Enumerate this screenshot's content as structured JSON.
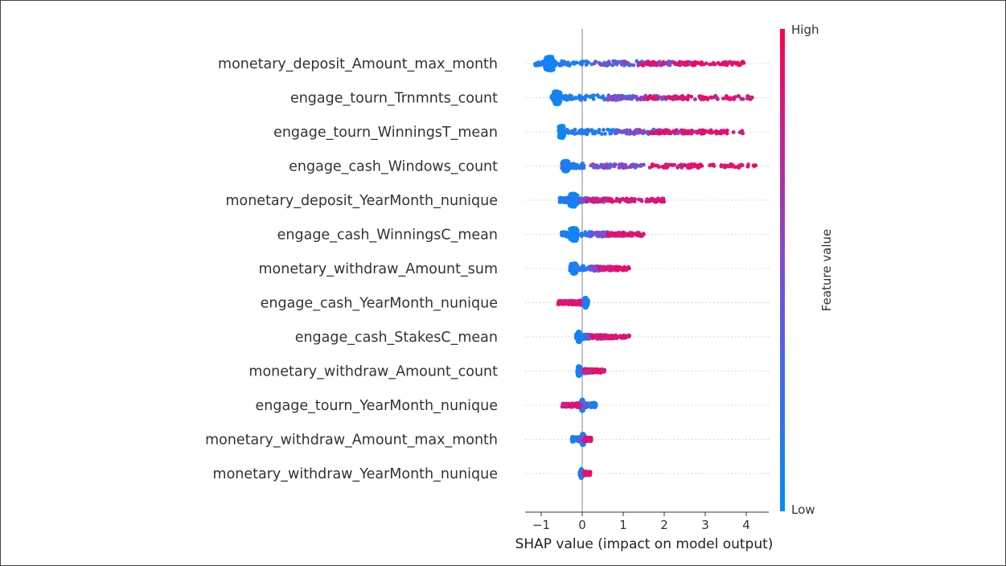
{
  "chart_data": {
    "type": "scatter",
    "subtype": "shap-beeswarm-summary",
    "title": "",
    "xlabel": "SHAP value (impact on model output)",
    "xlim": [
      -1.4,
      4.5
    ],
    "xticks": [
      -1,
      0,
      1,
      2,
      3,
      4
    ],
    "xtick_labels": [
      "−1",
      "0",
      "1",
      "2",
      "3",
      "4"
    ],
    "grid": "horizontal dotted guide line per feature",
    "colorbar": {
      "label": "Feature value",
      "high_label": "High",
      "low_label": "Low",
      "low_color": "#008bfb",
      "high_color": "#ff0052",
      "placement": "right"
    },
    "features": [
      {
        "name": "monetary_deposit_Amount_max_month",
        "mode": -0.8,
        "mode_spread": 0.22,
        "mode_height": 17,
        "low_range": [
          -1.15,
          1.5
        ],
        "mid_range": [
          0.3,
          2.6
        ],
        "high_range": [
          1.4,
          3.95
        ]
      },
      {
        "name": "engage_tourn_Trnmnts_count",
        "mode": -0.62,
        "mode_spread": 0.15,
        "mode_height": 16,
        "low_range": [
          -0.75,
          1.4
        ],
        "mid_range": [
          0.6,
          2.6
        ],
        "high_range": [
          1.5,
          4.2
        ]
      },
      {
        "name": "engage_tourn_WinningsT_mean",
        "mode": -0.5,
        "mode_spread": 0.12,
        "mode_height": 15,
        "low_range": [
          -0.55,
          2.0
        ],
        "mid_range": [
          0.8,
          3.0
        ],
        "high_range": [
          1.6,
          3.95
        ]
      },
      {
        "name": "engage_cash_Windows_count",
        "mode": -0.4,
        "mode_spread": 0.15,
        "mode_height": 13,
        "low_range": [
          -0.5,
          0.05
        ],
        "mid_range": [
          0.2,
          1.5
        ],
        "high_range": [
          1.6,
          4.25
        ]
      },
      {
        "name": "monetary_deposit_YearMonth_nunique",
        "mode": -0.22,
        "mode_spread": 0.18,
        "mode_height": 16,
        "low_range": [
          -0.55,
          0.1
        ],
        "mid_range": [
          -0.05,
          0.6
        ],
        "high_range": [
          0.1,
          2.0
        ]
      },
      {
        "name": "engage_cash_WinningsC_mean",
        "mode": -0.2,
        "mode_spread": 0.16,
        "mode_height": 16,
        "low_range": [
          -0.5,
          0.9
        ],
        "mid_range": [
          0.2,
          1.2
        ],
        "high_range": [
          0.6,
          1.5
        ]
      },
      {
        "name": "monetary_withdraw_Amount_sum",
        "mode": -0.2,
        "mode_spread": 0.14,
        "mode_height": 13,
        "low_range": [
          -0.3,
          0.5
        ],
        "mid_range": [
          0.2,
          0.9
        ],
        "high_range": [
          0.4,
          1.15
        ]
      },
      {
        "name": "engage_cash_YearMonth_nunique",
        "mode": 0.08,
        "mode_spread": 0.06,
        "mode_height": 12,
        "low_range": [
          -0.05,
          0.15
        ],
        "mid_range": [
          -0.3,
          0.0
        ],
        "high_range": [
          -0.6,
          -0.05
        ]
      },
      {
        "name": "engage_cash_StakesC_mean",
        "mode": -0.08,
        "mode_spread": 0.06,
        "mode_height": 13,
        "low_range": [
          -0.15,
          0.2
        ],
        "mid_range": [
          0.1,
          0.6
        ],
        "high_range": [
          0.2,
          1.15
        ]
      },
      {
        "name": "monetary_withdraw_Amount_count",
        "mode": -0.08,
        "mode_spread": 0.05,
        "mode_height": 12,
        "low_range": [
          -0.12,
          0.1
        ],
        "mid_range": [
          0.0,
          0.3
        ],
        "high_range": [
          0.05,
          0.55
        ]
      },
      {
        "name": "engage_tourn_YearMonth_nunique",
        "mode": 0.0,
        "mode_spread": 0.06,
        "mode_height": 14,
        "low_range": [
          -0.1,
          0.35
        ],
        "mid_range": [
          -0.3,
          0.1
        ],
        "high_range": [
          -0.5,
          -0.05
        ]
      },
      {
        "name": "monetary_withdraw_Amount_max_month",
        "mode": 0.02,
        "mode_spread": 0.06,
        "mode_height": 14,
        "low_range": [
          -0.25,
          0.12
        ],
        "mid_range": [
          -0.05,
          0.15
        ],
        "high_range": [
          0.05,
          0.22
        ]
      },
      {
        "name": "monetary_withdraw_YearMonth_nunique",
        "mode": -0.02,
        "mode_spread": 0.02,
        "mode_height": 11,
        "low_range": [
          -0.06,
          0.06
        ],
        "mid_range": [
          0.0,
          0.1
        ],
        "high_range": [
          0.05,
          0.2
        ]
      }
    ]
  }
}
